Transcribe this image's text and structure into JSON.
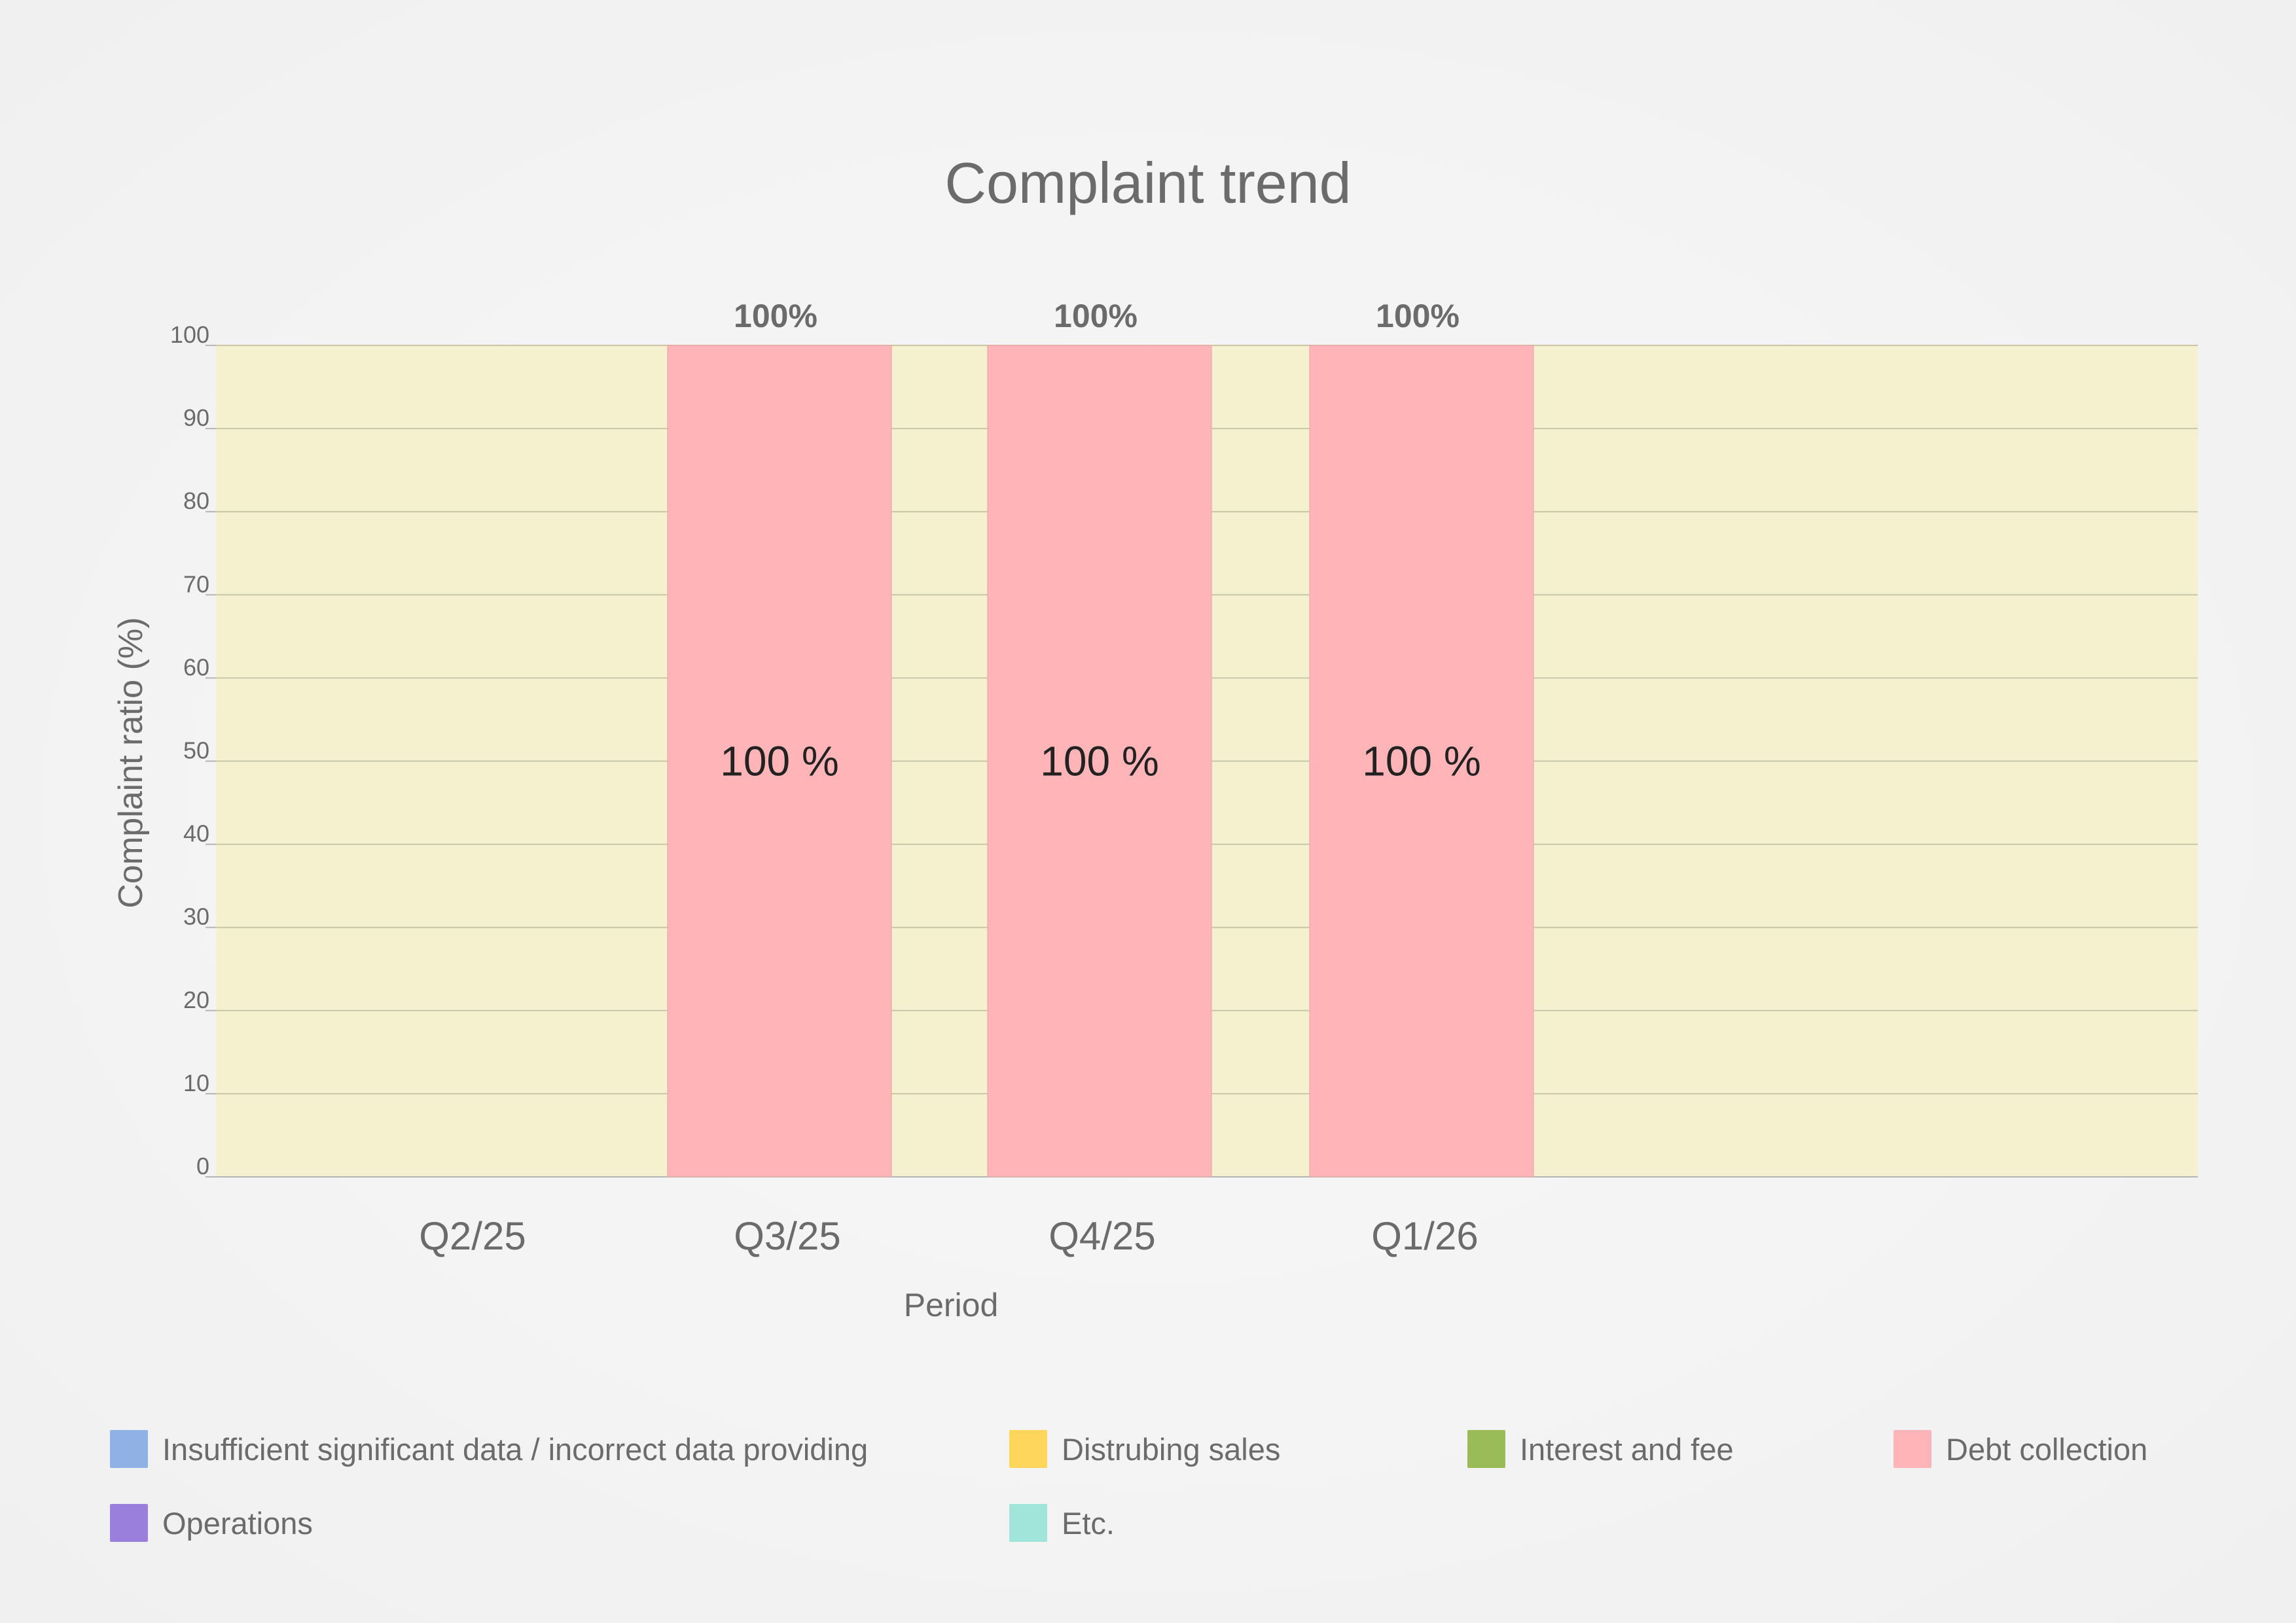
{
  "chart_data": {
    "type": "bar",
    "title": "Complaint trend",
    "xlabel": "Period",
    "ylabel": "Complaint ratio (%)",
    "categories": [
      "Q2/25",
      "Q3/25",
      "Q4/25",
      "Q1/26"
    ],
    "ylim": [
      0,
      100
    ],
    "yticks": [
      0,
      10,
      20,
      30,
      40,
      50,
      60,
      70,
      80,
      90,
      100
    ],
    "grid": true,
    "stacked": true,
    "series": [
      {
        "name": "Insufficient significant data / incorrect data providing",
        "color": "#8fb1e3",
        "values": [
          0,
          0,
          0,
          0
        ]
      },
      {
        "name": "Distrubing sales",
        "color": "#fdd65b",
        "values": [
          0,
          0,
          0,
          0
        ]
      },
      {
        "name": "Interest and fee",
        "color": "#9bbb59",
        "values": [
          0,
          0,
          0,
          0
        ]
      },
      {
        "name": "Debt collection",
        "color": "#ffb5b8",
        "values": [
          null,
          100,
          100,
          100
        ]
      },
      {
        "name": "Operations",
        "color": "#9b7fdc",
        "values": [
          0,
          0,
          0,
          0
        ]
      },
      {
        "name": "Etc.",
        "color": "#a0e4da",
        "values": [
          0,
          0,
          0,
          0
        ]
      }
    ],
    "bar_labels": [
      "100 %",
      "100 %",
      "100 %"
    ],
    "total_labels": [
      "100%",
      "100%",
      "100%"
    ],
    "legend_position": "bottom",
    "plot_background": "#f5f1cf"
  }
}
